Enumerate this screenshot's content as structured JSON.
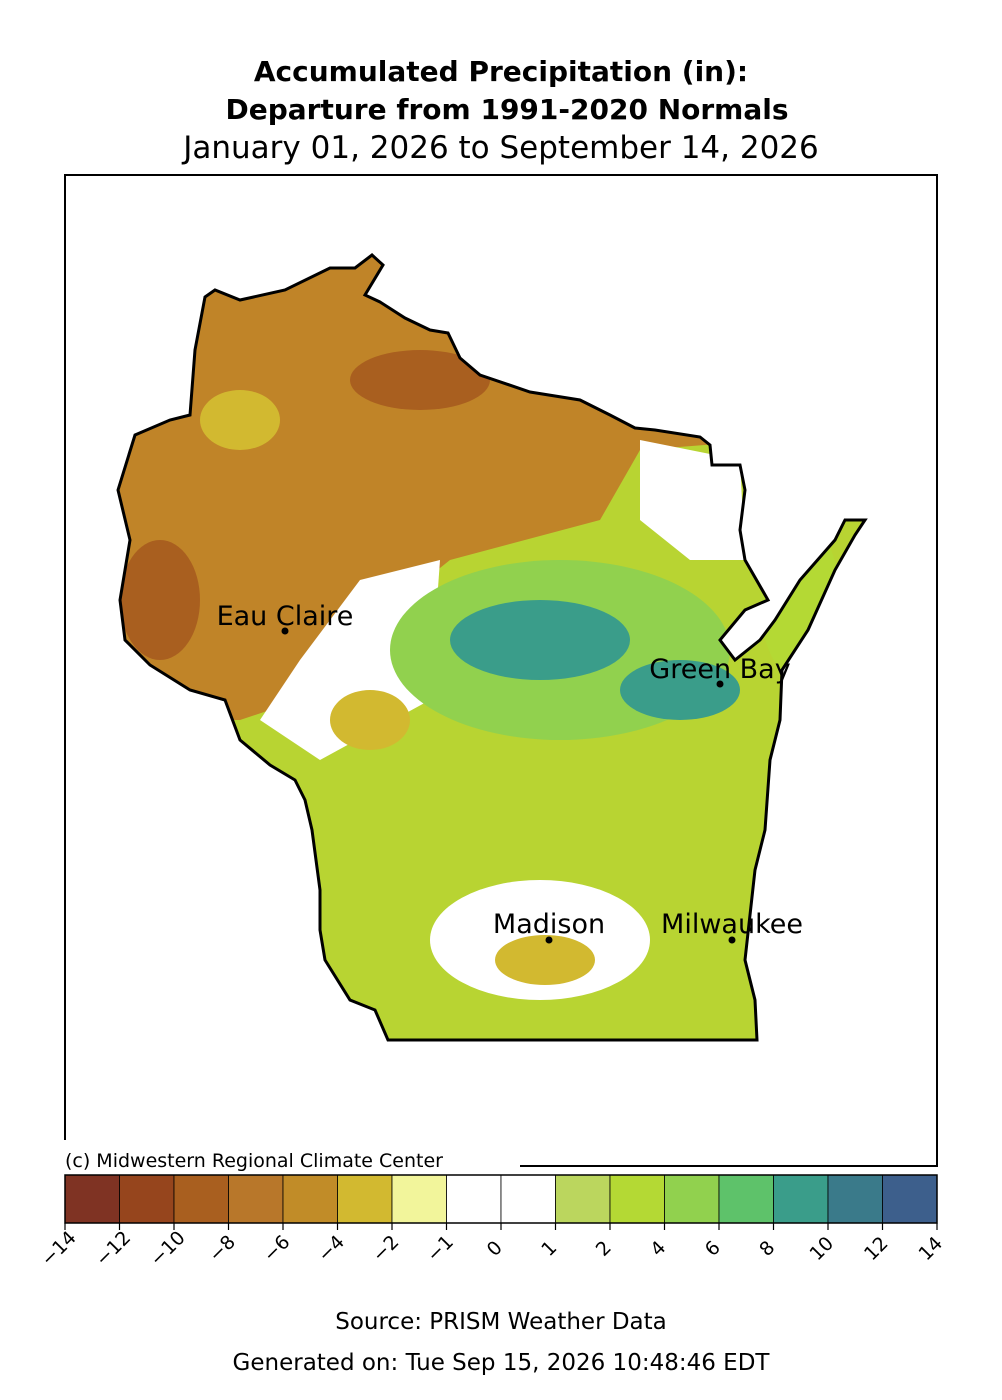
{
  "header": {
    "title_lines": [
      "Accumulated Precipitation (in):",
      "Departure from 1991-2020 Normals"
    ],
    "date_range": "January 01, 2026 to September 14, 2026"
  },
  "map": {
    "cities": [
      "Eau Claire",
      "Green Bay",
      "Madison",
      "Milwaukee"
    ]
  },
  "copyright": "(c) Midwestern Regional Climate Center",
  "legend": {
    "colors": [
      "#7f3323",
      "#96451d",
      "#a95f1f",
      "#b8772a",
      "#c18c28",
      "#d2b930",
      "#f2f59b",
      "#ffffff",
      "#ffffff",
      "#bbd65e",
      "#b4d934",
      "#91d14e",
      "#5ec26a",
      "#3a9d8a",
      "#3a7a8a",
      "#3d5f8c"
    ],
    "ticks": [
      {
        "value": -14,
        "label": "−14"
      },
      {
        "value": -12,
        "label": "−12"
      },
      {
        "value": -10,
        "label": "−10"
      },
      {
        "value": -8,
        "label": "−8"
      },
      {
        "value": -6,
        "label": "−6"
      },
      {
        "value": -4,
        "label": "−4"
      },
      {
        "value": -2,
        "label": "−2"
      },
      {
        "value": -1,
        "label": "−1"
      },
      0,
      1,
      2,
      4,
      6,
      8,
      10,
      12,
      14
    ]
  },
  "footer": {
    "source": "Source: PRISM Weather Data",
    "generated": "Generated on: Tue Sep 15, 2026 10:48:46 EDT"
  }
}
